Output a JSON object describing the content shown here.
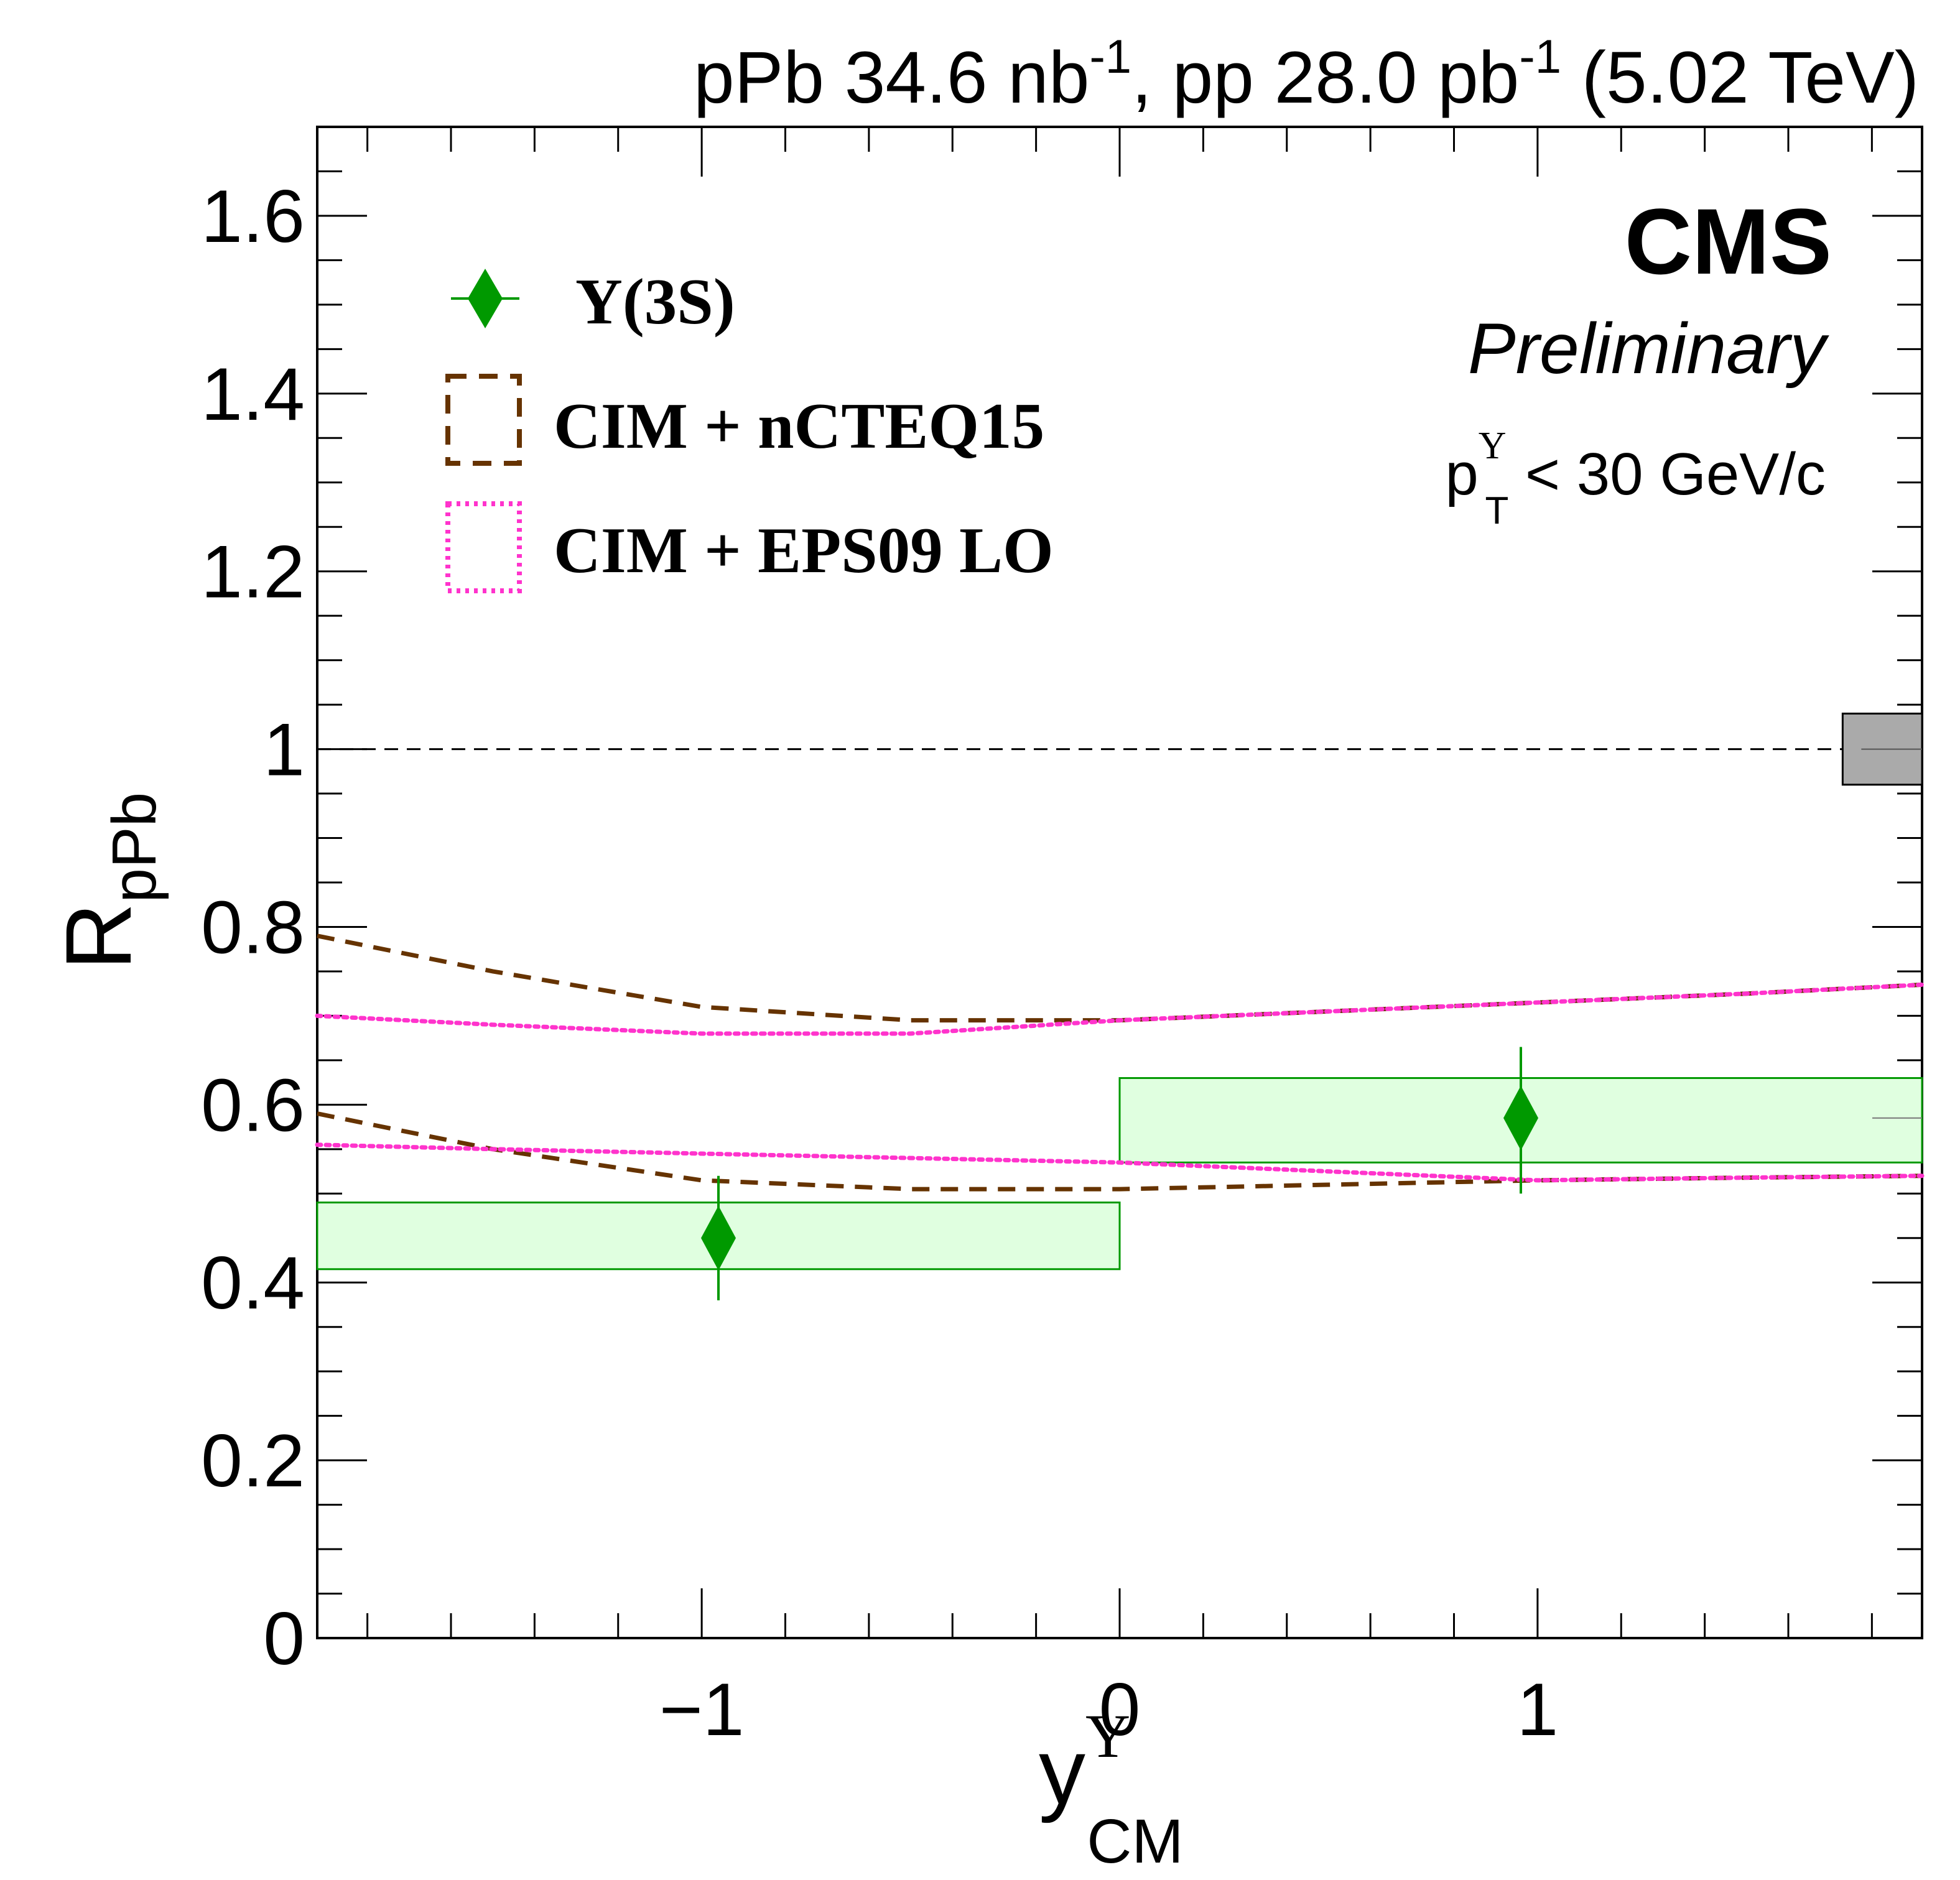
{
  "chart_data": {
    "type": "scatter",
    "header": {
      "main": "pPb 34.6 nb",
      "sup1": "-1",
      "mid": ", pp 28.0 pb",
      "sup2": "-1",
      "tail": " (5.02 TeV)"
    },
    "experiment": "CMS",
    "status": "Preliminary",
    "cut": {
      "base": "p",
      "sup": "Υ",
      "sub": "T",
      "rest": " < 30 GeV/c"
    },
    "ylabel": {
      "base": "R",
      "sub": "pPb"
    },
    "xlabel": {
      "base": "y",
      "sup": "Υ",
      "sub": "CM"
    },
    "xlim": [
      -1.92,
      1.92
    ],
    "ylim": [
      0,
      1.7
    ],
    "x_ticks": [
      {
        "value": -1,
        "label": "−1"
      },
      {
        "value": 0,
        "label": "0"
      },
      {
        "value": 1,
        "label": "1"
      }
    ],
    "y_ticks": [
      {
        "value": 0,
        "label": "0"
      },
      {
        "value": 0.2,
        "label": "0.2"
      },
      {
        "value": 0.4,
        "label": "0.4"
      },
      {
        "value": 0.6,
        "label": "0.6"
      },
      {
        "value": 0.8,
        "label": "0.8"
      },
      {
        "value": 1.0,
        "label": "1"
      },
      {
        "value": 1.2,
        "label": "1.2"
      },
      {
        "value": 1.4,
        "label": "1.4"
      },
      {
        "value": 1.6,
        "label": "1.6"
      }
    ],
    "reference_line": 1.0,
    "global_uncertainty": {
      "x": [
        1.73,
        1.92
      ],
      "y": [
        0.96,
        1.04
      ],
      "color": "#aaaaaa"
    },
    "series": [
      {
        "name": "Υ(3S)",
        "color": "#009900",
        "box_fill": "#e0ffe0",
        "points": [
          {
            "x": -0.96,
            "y": 0.45,
            "stat_low": 0.38,
            "stat_high": 0.52,
            "syst_x": [
              -1.93,
              0.0
            ],
            "syst_low": 0.415,
            "syst_high": 0.49
          },
          {
            "x": 0.96,
            "y": 0.585,
            "stat_low": 0.5,
            "stat_high": 0.665,
            "syst_x": [
              0.0,
              1.93
            ],
            "syst_low": 0.535,
            "syst_high": 0.63
          }
        ]
      }
    ],
    "models": [
      {
        "name": "CIM + nCTEQ15",
        "color": "#663300",
        "style": "dashed",
        "upper": {
          "x": [
            -1.93,
            -1.5,
            -1.0,
            -0.5,
            0.0,
            0.5,
            1.0,
            1.5,
            1.93
          ],
          "y": [
            0.79,
            0.75,
            0.71,
            0.695,
            0.695,
            0.705,
            0.715,
            0.725,
            0.735
          ]
        },
        "lower": {
          "x": [
            -1.93,
            -1.5,
            -1.0,
            -0.5,
            0.0,
            0.5,
            1.0,
            1.5,
            1.93
          ],
          "y": [
            0.59,
            0.55,
            0.515,
            0.505,
            0.505,
            0.51,
            0.515,
            0.518,
            0.52
          ]
        }
      },
      {
        "name": "CIM + EPS09 LO",
        "color": "#ff33cc",
        "style": "dotted",
        "upper": {
          "x": [
            -1.93,
            -1.5,
            -1.0,
            -0.5,
            0.0,
            0.5,
            1.0,
            1.5,
            1.93
          ],
          "y": [
            0.7,
            0.69,
            0.68,
            0.68,
            0.695,
            0.705,
            0.715,
            0.725,
            0.735
          ]
        },
        "lower": {
          "x": [
            -1.93,
            -1.5,
            -1.0,
            -0.5,
            0.0,
            0.5,
            1.0,
            1.5,
            1.93
          ],
          "y": [
            0.555,
            0.55,
            0.545,
            0.54,
            0.535,
            0.525,
            0.515,
            0.518,
            0.52
          ]
        }
      }
    ],
    "legend": {
      "position": "top-left",
      "entries": [
        "Υ(3S)",
        "CIM + nCTEQ15",
        "CIM + EPS09 LO"
      ]
    }
  }
}
